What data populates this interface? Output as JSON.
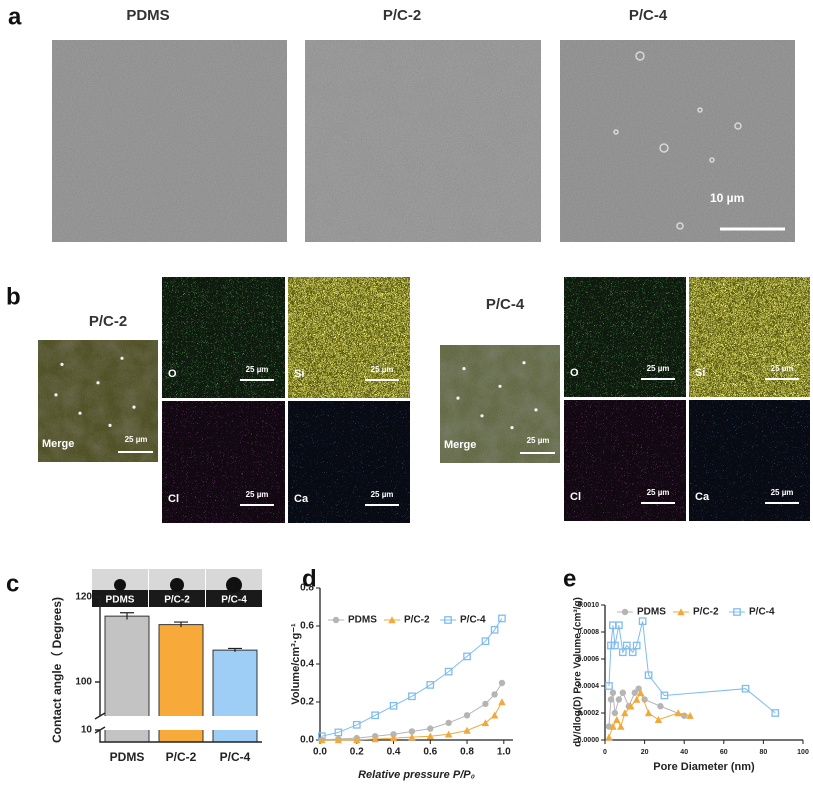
{
  "panels": {
    "a": {
      "label": "a",
      "samples": [
        "PDMS",
        "P/C-2",
        "P/C-4"
      ],
      "scale_bar": "10 µm"
    },
    "b": {
      "label": "b",
      "samples": [
        "P/C-2",
        "P/C-4"
      ],
      "maps": [
        "Merge",
        "O",
        "Si",
        "Cl",
        "Ca"
      ],
      "scale_bar": "25 µm"
    },
    "c": {
      "label": "c"
    },
    "d": {
      "label": "d"
    },
    "e": {
      "label": "e"
    }
  },
  "chart_data": [
    {
      "type": "bar",
      "y_label": "Contact angle（ Degrees)",
      "categories": [
        "PDMS",
        "P/C-2",
        "P/C-4"
      ],
      "values": [
        115.5,
        113.5,
        107.5
      ],
      "errors": [
        0.8,
        0.6,
        0.4
      ],
      "colors": [
        "#c3c3c3",
        "#f7a93a",
        "#9ecdf5"
      ],
      "ylim": [
        0,
        120
      ],
      "ybreak": [
        10,
        92
      ],
      "yticks": [
        10,
        100,
        120
      ]
    },
    {
      "type": "line",
      "x_label": "Relative pressure P/P₀",
      "y_label": "Volume/cm³·g⁻¹",
      "x": [
        0.01,
        0.1,
        0.2,
        0.3,
        0.4,
        0.5,
        0.6,
        0.7,
        0.8,
        0.9,
        0.95,
        0.99
      ],
      "series": [
        {
          "name": "PDMS",
          "color": "#b5b5b5",
          "marker": "circle",
          "values": [
            0.0,
            0.005,
            0.01,
            0.02,
            0.03,
            0.045,
            0.06,
            0.09,
            0.13,
            0.19,
            0.24,
            0.3
          ]
        },
        {
          "name": "P/C-2",
          "color": "#f0a93a",
          "marker": "triangle",
          "values": [
            0.0,
            0.0,
            0.0,
            0.005,
            0.01,
            0.015,
            0.02,
            0.03,
            0.05,
            0.09,
            0.13,
            0.2
          ]
        },
        {
          "name": "P/C-4",
          "color": "#7fbcef",
          "marker": "square",
          "values": [
            0.02,
            0.04,
            0.08,
            0.13,
            0.18,
            0.23,
            0.29,
            0.36,
            0.44,
            0.52,
            0.58,
            0.64
          ]
        }
      ],
      "xlim": [
        0,
        1.05
      ],
      "xticks": [
        {
          "value": 0,
          "label": "0.0"
        },
        0.2,
        0.4,
        0.6,
        0.8,
        {
          "value": 1,
          "label": "1.0"
        }
      ],
      "ylim": [
        0,
        0.8
      ],
      "yticks": [
        {
          "value": 0,
          "label": "0.0"
        },
        0.2,
        0.4,
        0.6,
        0.8
      ]
    },
    {
      "type": "line",
      "x_label": "Pore Diameter (nm)",
      "y_label": "dV/dlog(D) Pore Volume (cm³/g)",
      "series": [
        {
          "name": "PDMS",
          "color": "#b5b5b5",
          "marker": "circle",
          "x": [
            2,
            3,
            4,
            5,
            7,
            9,
            12,
            15,
            17,
            20,
            28,
            40
          ],
          "values": [
            0.0001,
            0.0003,
            0.00035,
            0.0002,
            0.0003,
            0.00035,
            0.00025,
            0.00035,
            0.00038,
            0.0003,
            0.00025,
            0.00018
          ]
        },
        {
          "name": "P/C-2",
          "color": "#f0a93a",
          "marker": "triangle",
          "x": [
            2,
            4,
            6,
            8,
            10,
            13,
            16,
            18,
            22,
            27,
            37,
            43
          ],
          "values": [
            2e-05,
            0.0001,
            0.00015,
            0.0001,
            0.0002,
            0.00025,
            0.0003,
            0.00035,
            0.0002,
            0.00015,
            0.0002,
            0.00018
          ]
        },
        {
          "name": "P/C-4",
          "color": "#7fbcef",
          "marker": "square",
          "x": [
            2,
            3,
            4,
            5,
            7,
            9,
            11,
            14,
            16,
            19,
            22,
            30,
            71,
            86
          ],
          "values": [
            0.0004,
            0.0007,
            0.00085,
            0.0007,
            0.00085,
            0.00065,
            0.0007,
            0.00065,
            0.0007,
            0.00088,
            0.00048,
            0.00033,
            0.00038,
            0.0002
          ]
        }
      ],
      "xlim": [
        0,
        100
      ],
      "xticks": [
        0,
        20,
        40,
        60,
        80,
        100
      ],
      "ylim": [
        0,
        0.001
      ],
      "yticks": [
        {
          "value": 0,
          "label": "0.0000"
        },
        {
          "value": 0.0002,
          "label": "0.0002"
        },
        {
          "value": 0.0004,
          "label": "0.0004"
        },
        {
          "value": 0.0006,
          "label": "0.0006"
        },
        {
          "value": 0.0008,
          "label": "0.0008"
        },
        {
          "value": 0.001,
          "label": "0.0010"
        }
      ]
    }
  ]
}
